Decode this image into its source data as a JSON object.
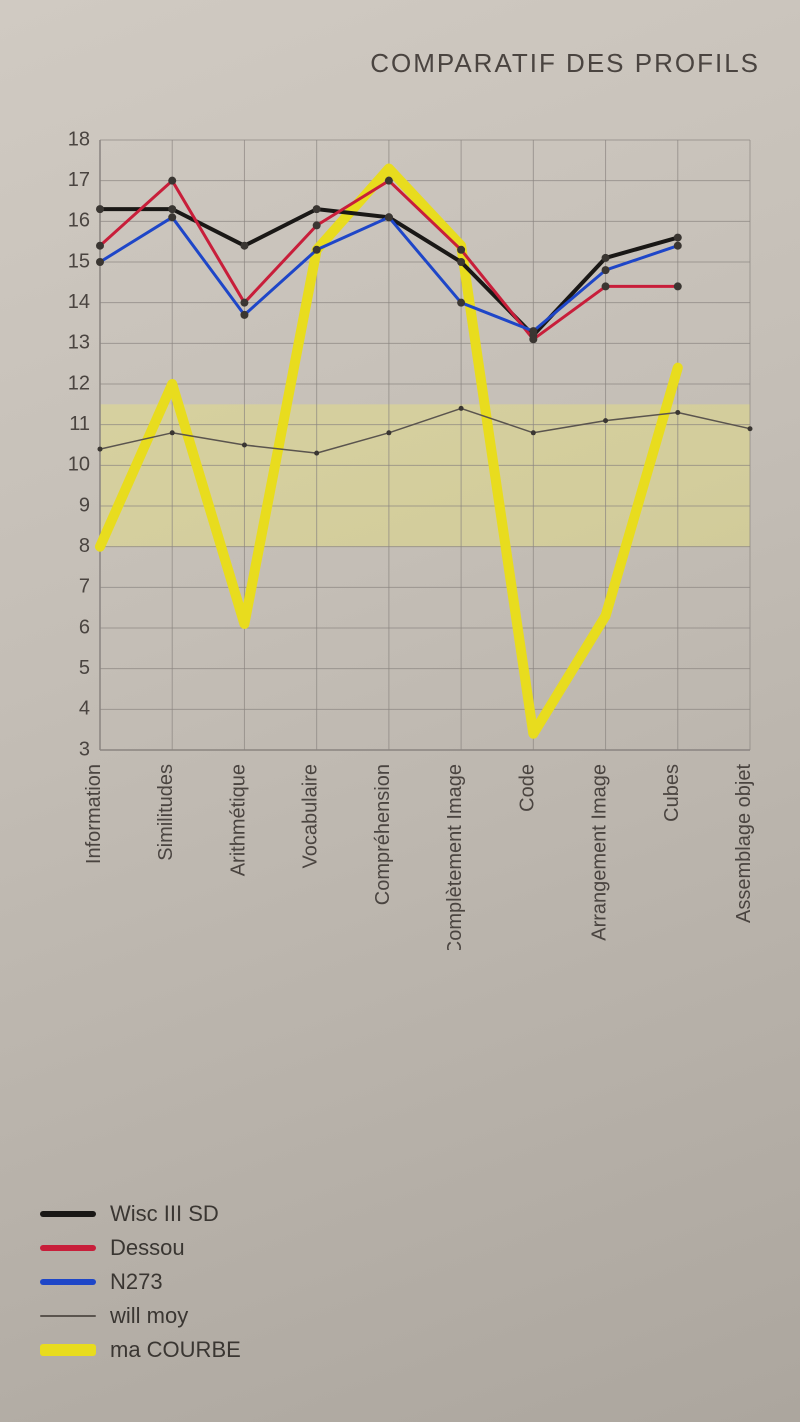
{
  "title": "COMPARATIF DES PROFILS",
  "chart": {
    "type": "line",
    "background_color": "#c6c0b8",
    "grid_color": "#8a8480",
    "band_color": "#f2ea6e",
    "band_opacity": 0.35,
    "band_yrange": [
      8,
      11.5
    ],
    "ylim": [
      3,
      18
    ],
    "ytick_step": 1,
    "yticks": [
      3,
      4,
      5,
      6,
      7,
      8,
      9,
      10,
      11,
      12,
      13,
      14,
      15,
      16,
      17,
      18
    ],
    "xlabels": [
      "Information",
      "Similitudes",
      "Arithmétique",
      "Vocabulaire",
      "Compréhension",
      "Complètement Image",
      "Code",
      "Arrangement Image",
      "Cubes",
      "Assemblage objet"
    ],
    "marker_radius": 4,
    "marker_fill": "#3a3632",
    "series": [
      {
        "key": "wisc",
        "label": "Wisc III SD",
        "color": "#1a1816",
        "width": 4,
        "values": [
          16.3,
          16.3,
          15.4,
          16.3,
          16.1,
          15.0,
          13.2,
          15.1,
          15.6,
          null
        ]
      },
      {
        "key": "dessou",
        "label": "Dessou",
        "color": "#c81e3a",
        "width": 3,
        "values": [
          15.4,
          17.0,
          14.0,
          15.9,
          17.0,
          15.3,
          13.1,
          14.4,
          14.4,
          null
        ]
      },
      {
        "key": "n273",
        "label": "N273",
        "color": "#1e46c8",
        "width": 3,
        "values": [
          15.0,
          16.1,
          13.7,
          15.3,
          16.1,
          14.0,
          13.3,
          14.8,
          15.4,
          null
        ]
      },
      {
        "key": "willmoy",
        "label": "will moy",
        "color": "#5a544e",
        "width": 1.5,
        "values": [
          10.4,
          10.8,
          10.5,
          10.3,
          10.8,
          11.4,
          10.8,
          11.1,
          11.3,
          10.9
        ]
      },
      {
        "key": "macourbe",
        "label": "ma COURBE",
        "color": "#e8dc1e",
        "width": 10,
        "values": [
          8.0,
          12.0,
          6.1,
          15.3,
          17.3,
          15.4,
          3.4,
          6.3,
          12.4,
          null
        ]
      }
    ],
    "legend_order": [
      "wisc",
      "dessou",
      "n273",
      "willmoy",
      "macourbe"
    ],
    "title_fontsize": 26,
    "label_fontsize": 20
  }
}
